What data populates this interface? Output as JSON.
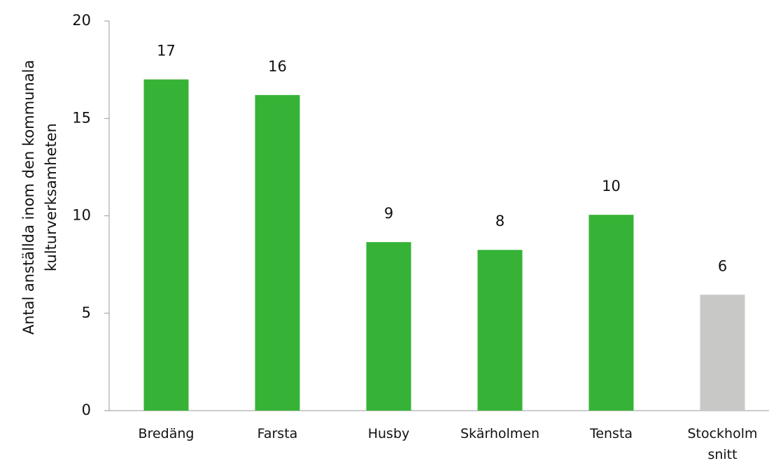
{
  "chart_data": {
    "type": "bar",
    "ylabel": "Antal anställda inom den kommunala kulturverksamheten",
    "categories": [
      "Bredäng",
      "Farsta",
      "Husby",
      "Skärholmen",
      "Tensta",
      "Stockholm snitt"
    ],
    "values": [
      17.0,
      16.2,
      8.65,
      8.25,
      10.05,
      5.95
    ],
    "value_labels": [
      "17",
      "16",
      "9",
      "8",
      "10",
      "6"
    ],
    "colors": [
      "#36b336",
      "#36b336",
      "#36b336",
      "#36b336",
      "#36b336",
      "#c8c8c6"
    ],
    "ylim": [
      0,
      20
    ],
    "yticks": [
      0,
      5,
      10,
      15,
      20
    ],
    "grid": false
  }
}
